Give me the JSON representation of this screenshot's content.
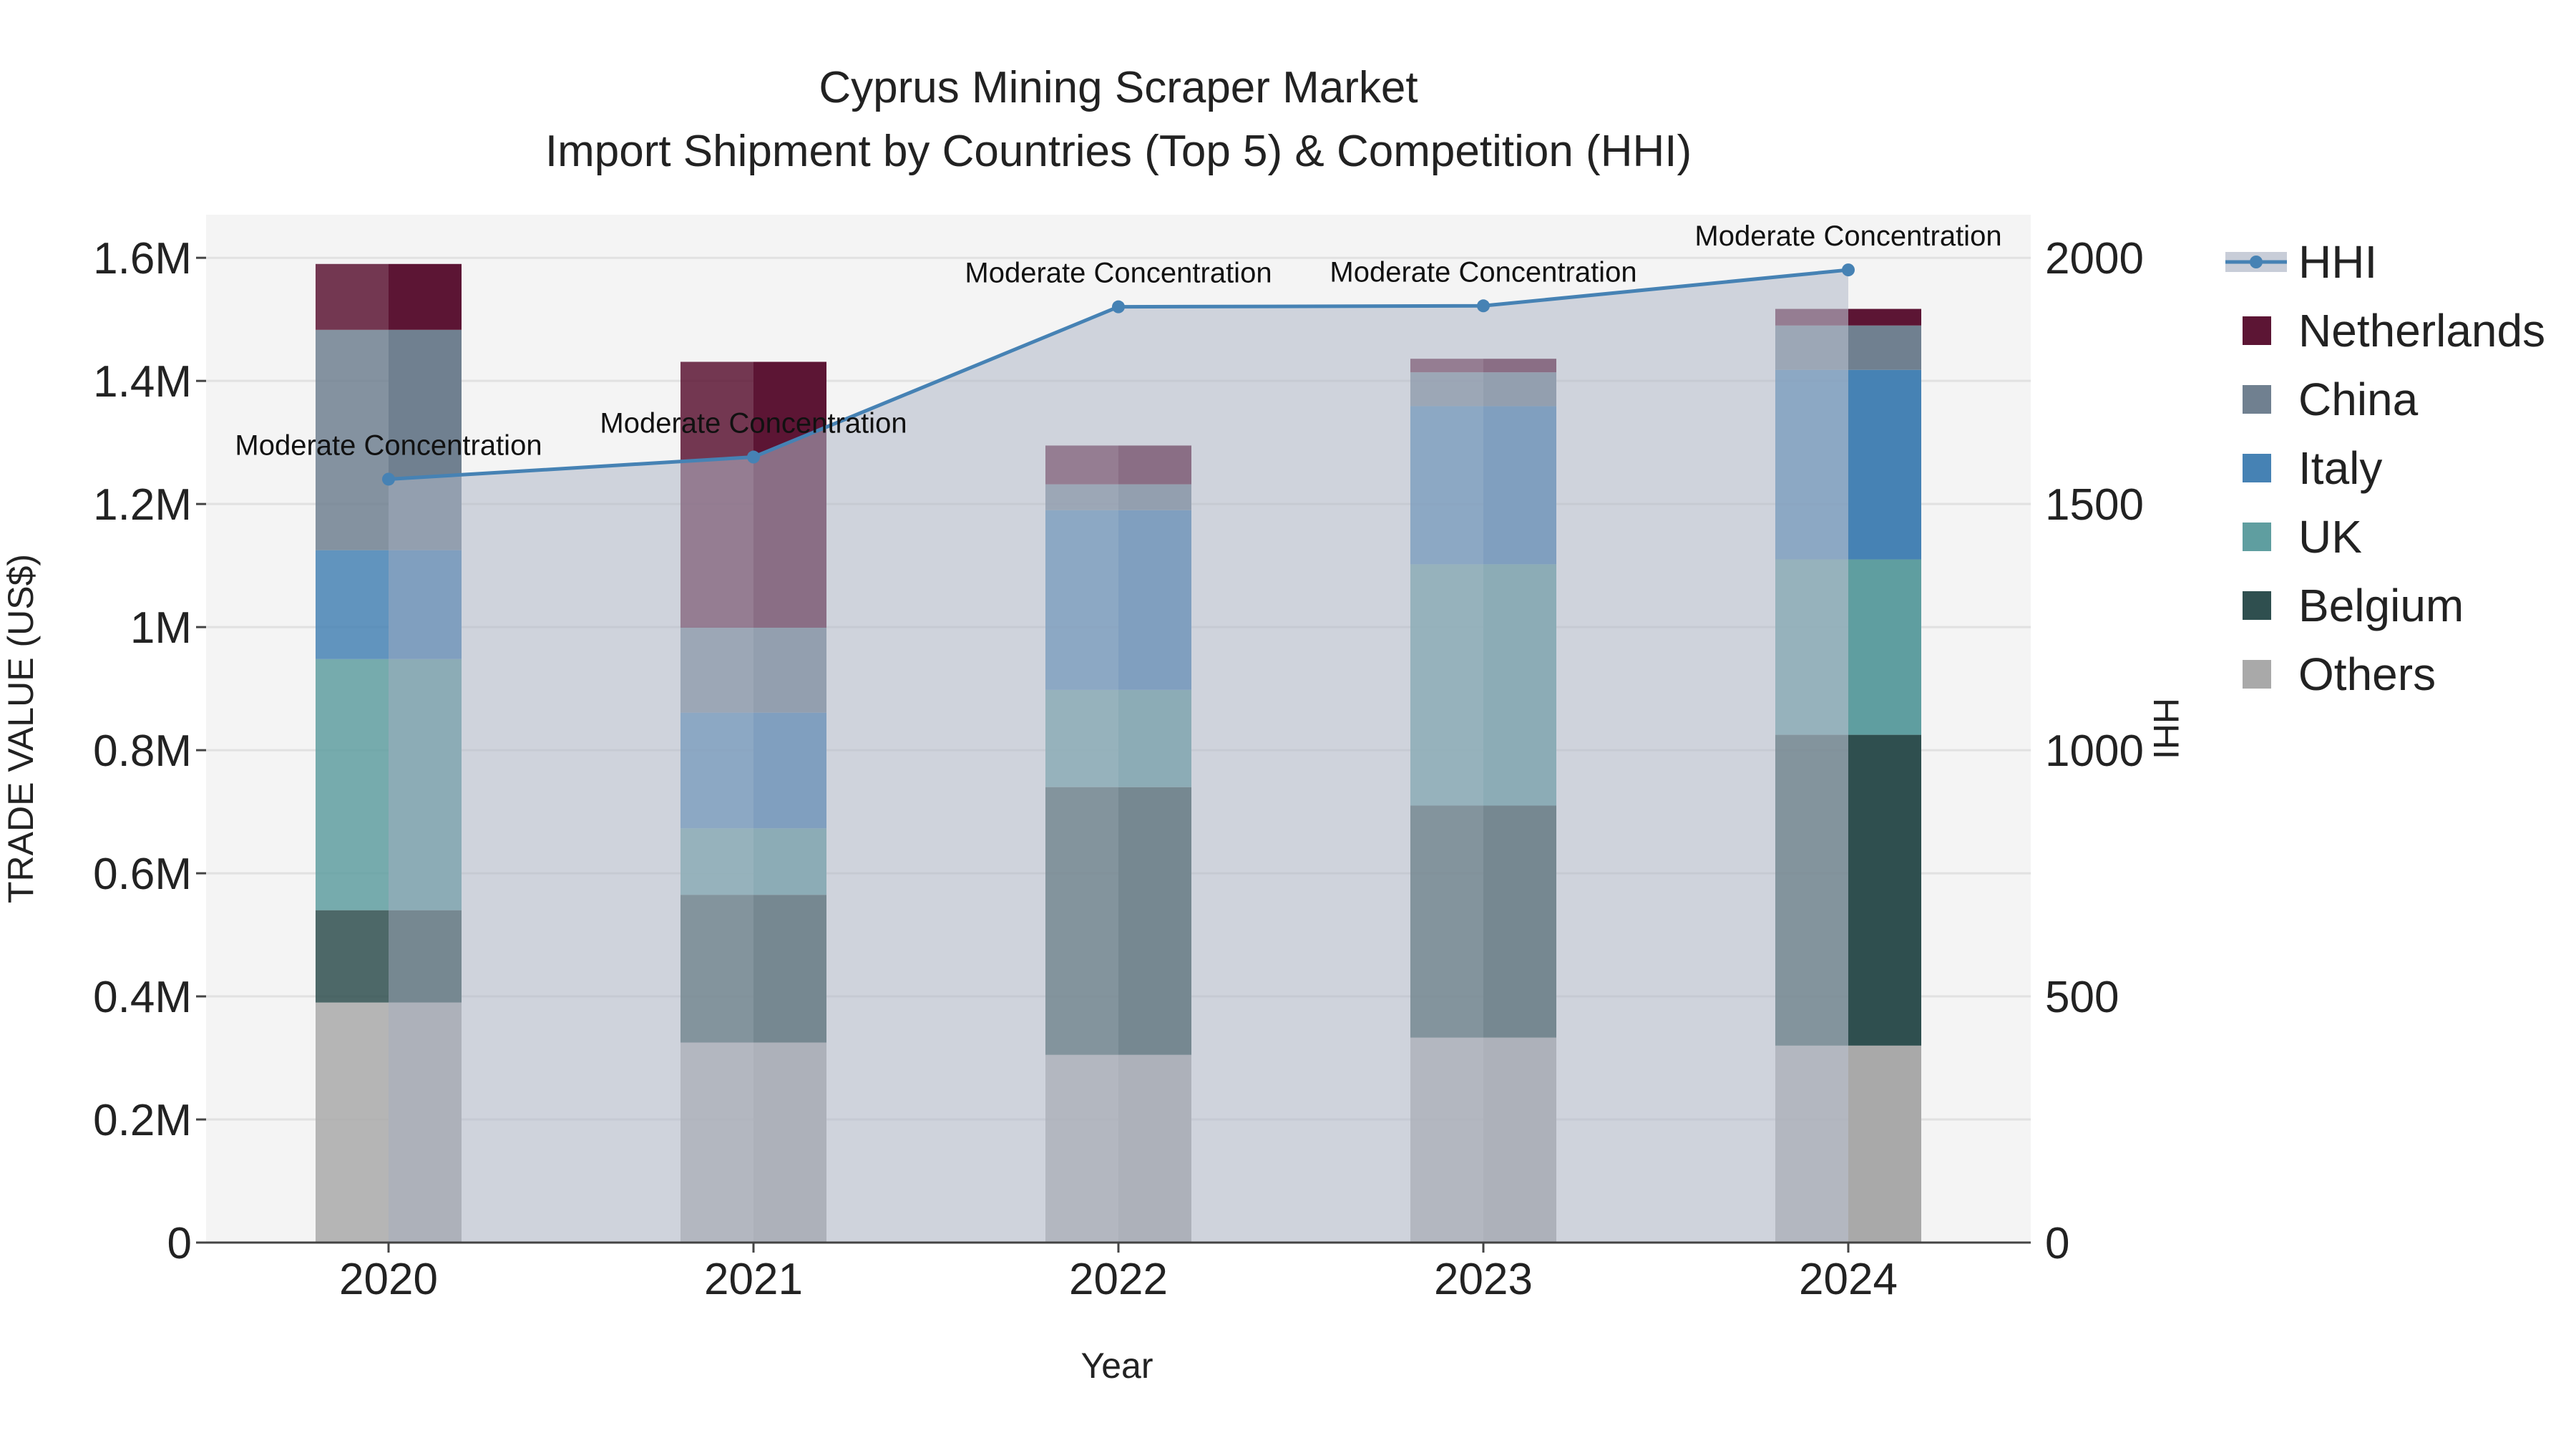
{
  "chart_data": {
    "type": "bar",
    "title": "Cyprus Mining Scraper Market",
    "subtitle": "Import Shipment by Countries (Top 5) & Competition (HHI)",
    "xlabel": "Year",
    "ylabel": "TRADE VALUE (US$)",
    "y2label": "HHI",
    "categories": [
      "2020",
      "2021",
      "2022",
      "2023",
      "2024"
    ],
    "ylim": [
      0,
      1670000
    ],
    "y2lim": [
      0,
      2087
    ],
    "y_ticks": [
      0,
      200000,
      400000,
      600000,
      800000,
      1000000,
      1200000,
      1400000,
      1600000
    ],
    "y_tick_labels": [
      "0",
      "0.2M",
      "0.4M",
      "0.6M",
      "0.8M",
      "1M",
      "1.2M",
      "1.4M",
      "1.6M"
    ],
    "y2_ticks": [
      0,
      500,
      1000,
      1500,
      2000
    ],
    "y2_tick_labels": [
      "0",
      "500",
      "1000",
      "1500",
      "2000"
    ],
    "grid": true,
    "legend_position": "right",
    "series": [
      {
        "name": "Others",
        "color": "#a9a9a9",
        "values": [
          390000,
          325000,
          305000,
          333000,
          320000
        ]
      },
      {
        "name": "Belgium",
        "color": "#2f4f4f",
        "values": [
          150000,
          240000,
          435000,
          377000,
          505000
        ]
      },
      {
        "name": "UK",
        "color": "#5f9ea0",
        "values": [
          408000,
          108000,
          158000,
          392000,
          285000
        ]
      },
      {
        "name": "Italy",
        "color": "#4682b4",
        "values": [
          177000,
          188000,
          292000,
          257000,
          308000
        ]
      },
      {
        "name": "China",
        "color": "#708090",
        "values": [
          358000,
          138000,
          42000,
          55000,
          72000
        ]
      },
      {
        "name": "Netherlands",
        "color": "#5c1534",
        "values": [
          107000,
          432000,
          63000,
          22000,
          27000
        ]
      }
    ],
    "line_series": {
      "name": "HHI",
      "color": "#4682b4",
      "values": [
        1550,
        1595,
        1900,
        1902,
        1975
      ],
      "annotations": [
        "Moderate Concentration",
        "Moderate Concentration",
        "Moderate Concentration",
        "Moderate Concentration",
        "Moderate Concentration"
      ]
    }
  }
}
